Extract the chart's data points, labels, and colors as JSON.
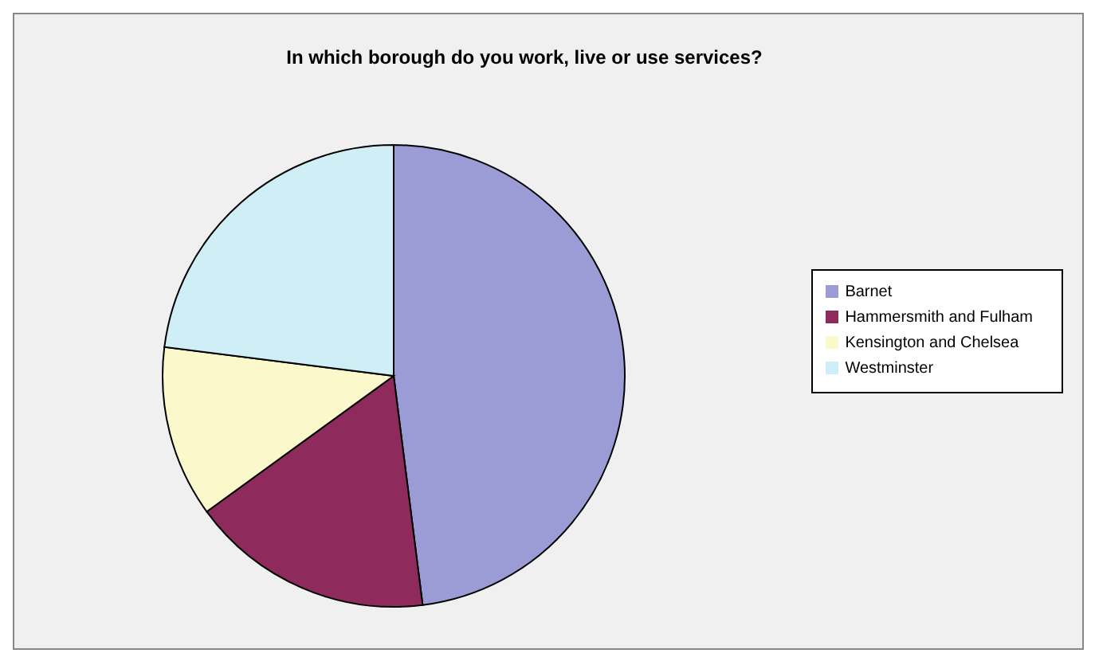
{
  "chart_data": {
    "type": "pie",
    "title": "In which borough do you work, live or use services?",
    "categories": [
      "Barnet",
      "Hammersmith and Fulham",
      "Kensington and Chelsea",
      "Westminster"
    ],
    "values": [
      48,
      17,
      12,
      23
    ],
    "colors": [
      "#9b9bd6",
      "#8e2a5c",
      "#fbf8cc",
      "#cfeef5"
    ],
    "legend": "right"
  }
}
